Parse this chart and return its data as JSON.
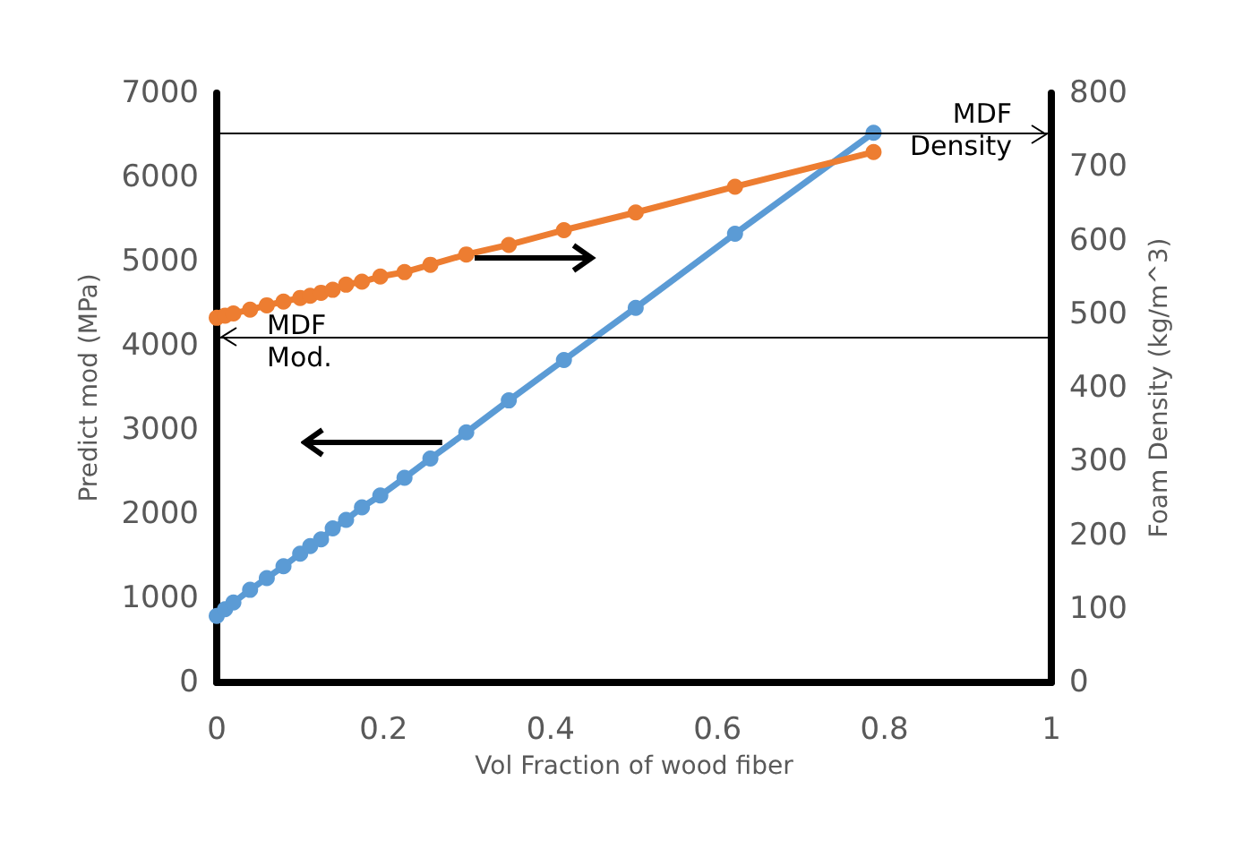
{
  "chart_data": {
    "type": "line",
    "xlabel": "Vol Fraction of wood fiber",
    "ylabel": "Predict mod (MPa)",
    "y2label": "Foam Density (kg/m^3)",
    "x": [
      0,
      0.01,
      0.02,
      0.04,
      0.06,
      0.08,
      0.1,
      0.112,
      0.125,
      0.139,
      0.155,
      0.174,
      0.196,
      0.225,
      0.256,
      0.299,
      0.35,
      0.416,
      0.502,
      0.621,
      0.787
    ],
    "series": [
      {
        "color": "#5b9bd5",
        "values": [
          790,
          870,
          950,
          1100,
          1240,
          1380,
          1530,
          1620,
          1700,
          1830,
          1930,
          2080,
          2220,
          2430,
          2660,
          2970,
          3350,
          3830,
          4450,
          5330,
          6530
        ]
      },
      {
        "color": "#ed7d31",
        "axis": "y2",
        "values": [
          495,
          498,
          501,
          506,
          512,
          517,
          522,
          525,
          529,
          533,
          540,
          544,
          551,
          557,
          567,
          581,
          594,
          614,
          638,
          673,
          720
        ]
      }
    ],
    "xlim": [
      0,
      1
    ],
    "xticks": [
      0,
      0.2,
      0.4,
      0.6,
      0.8,
      1
    ],
    "ylim": [
      0,
      7000
    ],
    "yticks": [
      0,
      1000,
      2000,
      3000,
      4000,
      5000,
      6000,
      7000
    ],
    "y2lim": [
      0,
      800
    ],
    "y2ticks": [
      0,
      100,
      200,
      300,
      400,
      500,
      600,
      700,
      800
    ],
    "ref_lines": [
      {
        "axis": "y2",
        "value": 745,
        "label": "MDF\nDensity",
        "color": "#000000"
      },
      {
        "axis": "y",
        "value": 4100,
        "label": "MDF\nMod.",
        "color": "#000000"
      }
    ],
    "grid": false,
    "marker": "circle",
    "line_style": "solid"
  }
}
